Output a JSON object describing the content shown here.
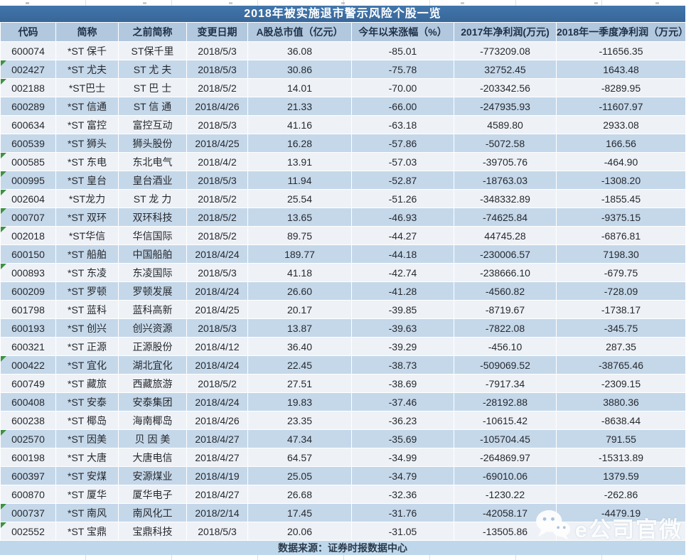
{
  "title": "2018年被实施退市警示风险个股一览",
  "source_note": "数据来源：证券时报数据中心",
  "watermark_label": "e公司官微",
  "colors": {
    "title_bar": "#3a6ca3",
    "header_bg": "#b2c8de",
    "row_light": "#eef2f7",
    "row_dark": "#c5d8ea",
    "footer_bg": "#bed7eb",
    "flag_green": "#3e9141"
  },
  "chart_data": {
    "type": "table",
    "title": "2018年被实施退市警示风险个股一览",
    "source": "数据来源：证券时报数据中心",
    "columns": [
      "代码",
      "简称",
      "之前简称",
      "变更日期",
      "A股总市值（亿元）",
      "今年以来涨幅（%）",
      "2017年净利润(万元)",
      "2018年一季度净利润（万元）"
    ],
    "rows": [
      [
        "600074",
        "*ST 保千",
        "ST保千里",
        "2018/5/3",
        "36.08",
        "-85.01",
        "-773209.08",
        "-11656.35"
      ],
      [
        "002427",
        "*ST 尤夫",
        "ST 尤 夫",
        "2018/5/3",
        "30.86",
        "-75.78",
        "32752.45",
        "1643.48"
      ],
      [
        "002188",
        "*ST巴士",
        "ST 巴 士",
        "2018/5/2",
        "14.01",
        "-70.00",
        "-203342.56",
        "-8289.95"
      ],
      [
        "600289",
        "*ST 信通",
        "ST 信 通",
        "2018/4/26",
        "21.33",
        "-66.00",
        "-247935.93",
        "-11607.97"
      ],
      [
        "600634",
        "*ST 富控",
        "富控互动",
        "2018/5/3",
        "41.16",
        "-63.18",
        "4589.80",
        "2933.08"
      ],
      [
        "600539",
        "*ST 狮头",
        "狮头股份",
        "2018/4/25",
        "16.28",
        "-57.86",
        "-5072.58",
        "166.56"
      ],
      [
        "000585",
        "*ST 东电",
        "东北电气",
        "2018/4/2",
        "13.91",
        "-57.03",
        "-39705.76",
        "-464.90"
      ],
      [
        "000995",
        "*ST 皇台",
        "皇台酒业",
        "2018/5/3",
        "11.94",
        "-52.87",
        "-18763.03",
        "-1308.20"
      ],
      [
        "002604",
        "*ST龙力",
        "ST 龙 力",
        "2018/5/2",
        "25.54",
        "-51.26",
        "-348332.89",
        "-1855.45"
      ],
      [
        "000707",
        "*ST 双环",
        "双环科技",
        "2018/5/2",
        "13.65",
        "-46.93",
        "-74625.84",
        "-9375.15"
      ],
      [
        "002018",
        "*ST华信",
        "华信国际",
        "2018/5/2",
        "89.75",
        "-44.27",
        "44745.28",
        "-6876.81"
      ],
      [
        "600150",
        "*ST 船舶",
        "中国船舶",
        "2018/4/24",
        "189.77",
        "-44.18",
        "-230006.57",
        "7198.30"
      ],
      [
        "000893",
        "*ST 东凌",
        "东凌国际",
        "2018/5/3",
        "41.18",
        "-42.74",
        "-238666.10",
        "-679.75"
      ],
      [
        "600209",
        "*ST 罗顿",
        "罗顿发展",
        "2018/4/24",
        "26.60",
        "-41.28",
        "-4560.82",
        "-728.09"
      ],
      [
        "601798",
        "*ST 蓝科",
        "蓝科高新",
        "2018/4/25",
        "20.17",
        "-39.85",
        "-8719.67",
        "-1738.17"
      ],
      [
        "600193",
        "*ST 创兴",
        "创兴资源",
        "2018/5/3",
        "13.87",
        "-39.63",
        "-7822.08",
        "-345.75"
      ],
      [
        "600321",
        "*ST 正源",
        "正源股份",
        "2018/4/12",
        "36.40",
        "-39.29",
        "-456.10",
        "287.35"
      ],
      [
        "000422",
        "*ST 宜化",
        "湖北宜化",
        "2018/4/24",
        "22.45",
        "-38.73",
        "-509069.52",
        "-38765.46"
      ],
      [
        "600749",
        "*ST 藏旅",
        "西藏旅游",
        "2018/5/2",
        "27.51",
        "-38.69",
        "-7917.34",
        "-2309.15"
      ],
      [
        "600408",
        "*ST 安泰",
        "安泰集团",
        "2018/4/24",
        "19.83",
        "-37.46",
        "-28192.88",
        "3880.36"
      ],
      [
        "600238",
        "*ST 椰岛",
        "海南椰岛",
        "2018/4/26",
        "23.35",
        "-36.23",
        "-10615.42",
        "-8638.44"
      ],
      [
        "002570",
        "*ST 因美",
        "贝 因 美",
        "2018/4/27",
        "47.34",
        "-35.69",
        "-105704.45",
        "791.55"
      ],
      [
        "600198",
        "*ST 大唐",
        "大唐电信",
        "2018/4/27",
        "64.57",
        "-34.99",
        "-264869.97",
        "-15313.89"
      ],
      [
        "600397",
        "*ST 安煤",
        "安源煤业",
        "2018/4/19",
        "25.05",
        "-34.79",
        "-69010.06",
        "1379.59"
      ],
      [
        "600870",
        "*ST 厦华",
        "厦华电子",
        "2018/4/27",
        "26.68",
        "-32.36",
        "-1230.22",
        "-262.86"
      ],
      [
        "000737",
        "*ST 南风",
        "南风化工",
        "2018/2/14",
        "17.45",
        "-31.76",
        "-42058.17",
        "-4479.19"
      ],
      [
        "002552",
        "*ST 宝鼎",
        "宝鼎科技",
        "2018/5/3",
        "20.06",
        "-31.05",
        "-13505.86",
        ""
      ]
    ]
  }
}
